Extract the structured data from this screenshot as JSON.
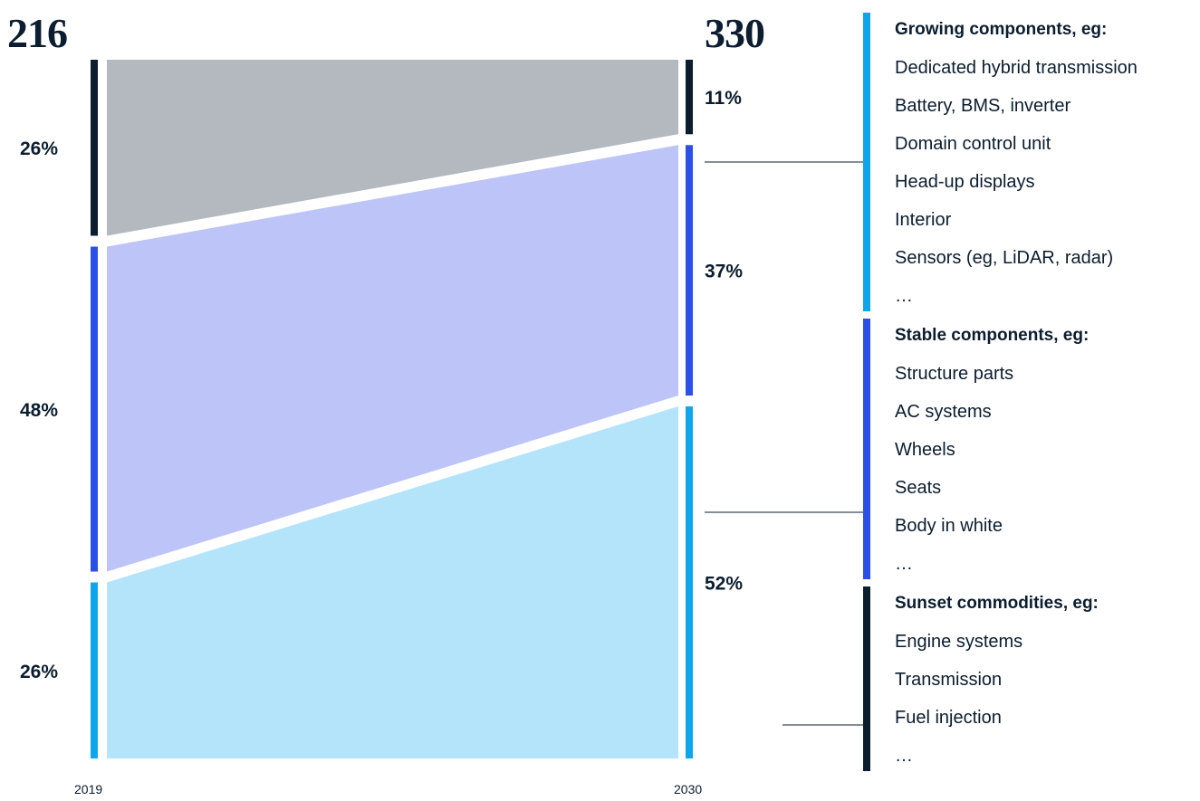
{
  "chart_data": {
    "type": "sankey",
    "totals": {
      "2019": "216",
      "2030": "330"
    },
    "years": [
      "2019",
      "2030"
    ],
    "colors": {
      "growing": "#0ea5ec",
      "stable": "#2b50e8",
      "sunset": "#0b1d2e"
    },
    "categories": [
      {
        "id": "sunset",
        "share_2019": 26,
        "share_2030": 11,
        "label_2019": "26%",
        "label_2030": "11%"
      },
      {
        "id": "stable",
        "share_2019": 48,
        "share_2030": 37,
        "label_2019": "48%",
        "label_2030": "37%"
      },
      {
        "id": "growing",
        "share_2019": 26,
        "share_2030": 52,
        "label_2019": "26%",
        "label_2030": "52%"
      }
    ],
    "groups": [
      {
        "id": "growing",
        "heading": "Growing components, eg:",
        "items": [
          "Dedicated hybrid transmission",
          "Battery, BMS, inverter",
          "Domain control unit",
          "Head-up displays",
          "Interior",
          "Sensors (eg, LiDAR, radar)",
          "…"
        ]
      },
      {
        "id": "stable",
        "heading": "Stable components, eg:",
        "items": [
          "Structure parts",
          "AC systems",
          "Wheels",
          "Seats",
          "Body in white",
          "…"
        ]
      },
      {
        "id": "sunset",
        "heading": "Sunset commodities, eg:",
        "items": [
          "Engine systems",
          "Transmission",
          "Fuel injection",
          "…"
        ]
      }
    ]
  }
}
